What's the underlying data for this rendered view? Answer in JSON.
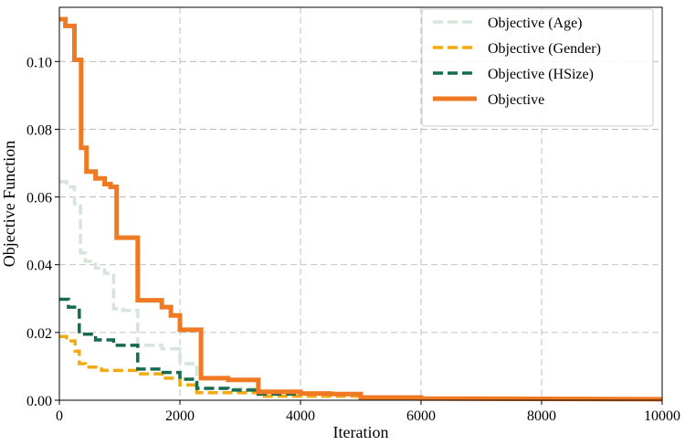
{
  "chart_data": {
    "type": "line",
    "xlabel": "Iteration",
    "ylabel": "Objective Function",
    "xlim": [
      0,
      10000
    ],
    "ylim": [
      0,
      0.116
    ],
    "x_ticks": [
      0,
      2000,
      4000,
      6000,
      8000,
      10000
    ],
    "x_tick_labels": [
      "0",
      "2000",
      "4000",
      "6000",
      "8000",
      "10000"
    ],
    "y_ticks": [
      0.0,
      0.02,
      0.04,
      0.06,
      0.08,
      0.1
    ],
    "y_tick_labels": [
      "0.00",
      "0.02",
      "0.04",
      "0.06",
      "0.08",
      "0.10"
    ],
    "grid": true,
    "legend_position": "top-right",
    "series": [
      {
        "name": "Objective (Age)",
        "color": "#d5e5dc",
        "style": "dashed",
        "points": [
          [
            0,
            0.0645
          ],
          [
            120,
            0.0645
          ],
          [
            120,
            0.063
          ],
          [
            250,
            0.063
          ],
          [
            250,
            0.058
          ],
          [
            350,
            0.058
          ],
          [
            350,
            0.0435
          ],
          [
            430,
            0.0435
          ],
          [
            430,
            0.041
          ],
          [
            600,
            0.041
          ],
          [
            600,
            0.039
          ],
          [
            750,
            0.039
          ],
          [
            750,
            0.0375
          ],
          [
            900,
            0.0375
          ],
          [
            900,
            0.027
          ],
          [
            1050,
            0.027
          ],
          [
            1050,
            0.0265
          ],
          [
            1300,
            0.0265
          ],
          [
            1300,
            0.0162
          ],
          [
            1700,
            0.0162
          ],
          [
            1700,
            0.0152
          ],
          [
            2000,
            0.0152
          ],
          [
            2000,
            0.0108
          ],
          [
            2280,
            0.0108
          ],
          [
            2280,
            0.0035
          ],
          [
            3300,
            0.0035
          ],
          [
            3300,
            0.002
          ],
          [
            5000,
            0.002
          ],
          [
            5000,
            0.0005
          ],
          [
            10000,
            0.0002
          ]
        ]
      },
      {
        "name": "Objective (Gender)",
        "color": "#f2aa12",
        "style": "dashed",
        "points": [
          [
            0,
            0.0188
          ],
          [
            120,
            0.0188
          ],
          [
            120,
            0.0175
          ],
          [
            260,
            0.0175
          ],
          [
            260,
            0.0145
          ],
          [
            330,
            0.0145
          ],
          [
            330,
            0.0108
          ],
          [
            430,
            0.0108
          ],
          [
            430,
            0.0098
          ],
          [
            700,
            0.0098
          ],
          [
            700,
            0.0088
          ],
          [
            1300,
            0.0088
          ],
          [
            1300,
            0.0078
          ],
          [
            1700,
            0.0078
          ],
          [
            1700,
            0.0065
          ],
          [
            2000,
            0.0065
          ],
          [
            2000,
            0.0045
          ],
          [
            2280,
            0.0045
          ],
          [
            2280,
            0.0022
          ],
          [
            3300,
            0.0022
          ],
          [
            3300,
            0.0012
          ],
          [
            5000,
            0.0012
          ],
          [
            5000,
            0.0004
          ],
          [
            10000,
            0.0002
          ]
        ]
      },
      {
        "name": "Objective (HSize)",
        "color": "#156b50",
        "style": "dashed",
        "points": [
          [
            0,
            0.0298
          ],
          [
            150,
            0.0298
          ],
          [
            150,
            0.0275
          ],
          [
            330,
            0.0275
          ],
          [
            330,
            0.0195
          ],
          [
            600,
            0.0195
          ],
          [
            600,
            0.0178
          ],
          [
            900,
            0.0178
          ],
          [
            900,
            0.0162
          ],
          [
            1300,
            0.0162
          ],
          [
            1300,
            0.0135
          ],
          [
            1300,
            0.0135
          ],
          [
            1300,
            0.0092
          ],
          [
            1650,
            0.0092
          ],
          [
            1650,
            0.0082
          ],
          [
            2000,
            0.0082
          ],
          [
            2000,
            0.0062
          ],
          [
            2280,
            0.0062
          ],
          [
            2280,
            0.0035
          ],
          [
            2800,
            0.0035
          ],
          [
            2800,
            0.003
          ],
          [
            3300,
            0.003
          ],
          [
            3300,
            0.0018
          ],
          [
            5000,
            0.0018
          ],
          [
            5000,
            0.0006
          ],
          [
            10000,
            0.0003
          ]
        ]
      },
      {
        "name": "Objective",
        "color": "#f07a24",
        "style": "solid",
        "points": [
          [
            0,
            0.1125
          ],
          [
            100,
            0.1125
          ],
          [
            100,
            0.1105
          ],
          [
            250,
            0.1105
          ],
          [
            250,
            0.1005
          ],
          [
            360,
            0.1005
          ],
          [
            360,
            0.0745
          ],
          [
            450,
            0.0745
          ],
          [
            450,
            0.0675
          ],
          [
            600,
            0.0675
          ],
          [
            600,
            0.0655
          ],
          [
            750,
            0.0655
          ],
          [
            750,
            0.0638
          ],
          [
            850,
            0.0638
          ],
          [
            850,
            0.063
          ],
          [
            950,
            0.063
          ],
          [
            950,
            0.048
          ],
          [
            1300,
            0.048
          ],
          [
            1300,
            0.0295
          ],
          [
            1700,
            0.0295
          ],
          [
            1700,
            0.0275
          ],
          [
            1850,
            0.0275
          ],
          [
            1850,
            0.025
          ],
          [
            2000,
            0.025
          ],
          [
            2000,
            0.0208
          ],
          [
            2350,
            0.0208
          ],
          [
            2350,
            0.0065
          ],
          [
            2800,
            0.0065
          ],
          [
            2800,
            0.006
          ],
          [
            3300,
            0.006
          ],
          [
            3300,
            0.0025
          ],
          [
            4000,
            0.0025
          ],
          [
            4000,
            0.002
          ],
          [
            4500,
            0.002
          ],
          [
            4500,
            0.0018
          ],
          [
            5000,
            0.0018
          ],
          [
            5000,
            0.0008
          ],
          [
            6000,
            0.0008
          ],
          [
            6000,
            0.0005
          ],
          [
            10000,
            0.0003
          ]
        ]
      }
    ]
  }
}
